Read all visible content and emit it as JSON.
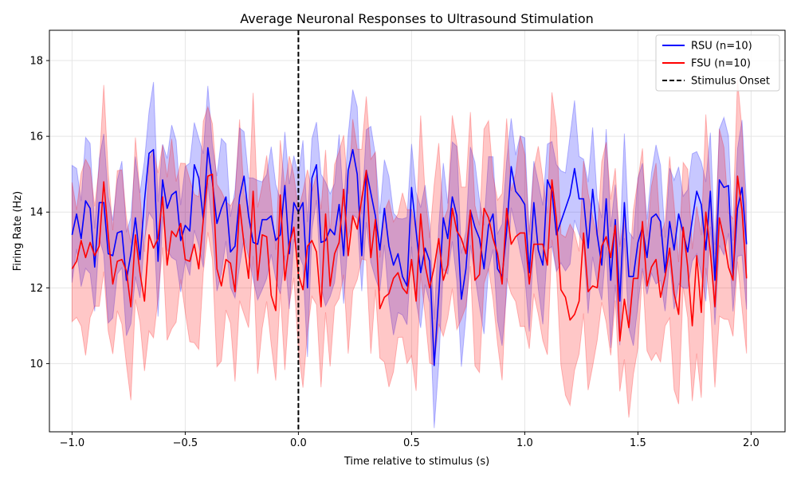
{
  "chart_data": {
    "type": "line",
    "title": "Average Neuronal Responses to Ultrasound Stimulation",
    "xlabel": "Time relative to stimulus (s)",
    "ylabel": "Firing Rate (Hz)",
    "xlim": [
      -1.1,
      2.15
    ],
    "ylim": [
      8.2,
      18.8
    ],
    "xticks": [
      -1.0,
      -0.5,
      0.0,
      0.5,
      1.0,
      1.5,
      2.0
    ],
    "xtick_labels": [
      "−1.0",
      "−0.5",
      "0.0",
      "0.5",
      "1.0",
      "1.5",
      "2.0"
    ],
    "yticks": [
      10,
      12,
      14,
      16,
      18
    ],
    "ytick_labels": [
      "10",
      "12",
      "14",
      "16",
      "18"
    ],
    "grid": true,
    "legend_position": "top-right",
    "x_start": -1.0,
    "x_step": 0.02,
    "series": [
      {
        "name": "RSU (n=10)",
        "color": "#0000ff",
        "band_color": "#0000ff",
        "band_opacity": 0.22,
        "band_halfwidth": 1.85,
        "values": [
          13.4,
          13.95,
          13.3,
          14.3,
          14.1,
          12.55,
          14.25,
          14.25,
          12.9,
          12.85,
          13.45,
          13.5,
          12.2,
          12.9,
          13.85,
          12.75,
          14.3,
          15.55,
          15.65,
          12.7,
          14.85,
          14.1,
          14.45,
          14.55,
          13.25,
          13.65,
          13.5,
          15.25,
          14.9,
          13.8,
          15.7,
          14.8,
          13.7,
          14.1,
          14.4,
          12.95,
          13.1,
          14.4,
          14.95,
          13.9,
          13.2,
          13.15,
          13.8,
          13.8,
          13.9,
          13.25,
          13.4,
          14.7,
          12.9,
          14.25,
          14.0,
          14.25,
          12.0,
          14.9,
          15.25,
          13.2,
          13.25,
          13.55,
          13.4,
          14.2,
          12.85,
          15.1,
          15.65,
          15.0,
          12.85,
          15.1,
          14.5,
          13.9,
          13.0,
          14.1,
          13.1,
          12.6,
          12.9,
          12.3,
          12.05,
          14.65,
          13.5,
          12.4,
          13.05,
          12.7,
          9.95,
          11.8,
          13.85,
          13.3,
          14.4,
          13.9,
          11.7,
          12.5,
          14.05,
          13.6,
          13.3,
          12.5,
          13.65,
          13.95,
          12.5,
          12.3,
          13.5,
          15.2,
          14.55,
          14.4,
          14.2,
          12.4,
          14.25,
          13.0,
          12.6,
          14.85,
          14.55,
          13.4,
          13.75,
          14.1,
          14.45,
          15.15,
          14.35,
          14.35,
          13.05,
          14.6,
          13.4,
          12.6,
          14.35,
          12.2,
          13.8,
          11.65,
          14.25,
          12.3,
          12.3,
          13.2,
          13.6,
          12.8,
          13.85,
          13.95,
          13.75,
          12.4,
          13.75,
          13.0,
          13.95,
          13.45,
          12.95,
          13.8,
          14.55,
          14.2,
          13.0,
          14.55,
          12.2,
          14.85,
          14.65,
          14.7,
          12.3,
          14.1,
          14.65,
          13.15
        ]
      },
      {
        "name": "FSU (n=10)",
        "color": "#ff0000",
        "band_color": "#ff0000",
        "band_opacity": 0.22,
        "band_halfwidth": 2.6,
        "values": [
          12.5,
          12.7,
          13.25,
          12.8,
          13.2,
          12.85,
          13.1,
          14.8,
          13.4,
          12.1,
          12.7,
          12.75,
          12.45,
          11.5,
          13.4,
          12.4,
          11.65,
          13.4,
          13.05,
          13.3,
          14.4,
          12.6,
          13.5,
          13.35,
          13.7,
          12.75,
          12.7,
          13.15,
          12.5,
          13.8,
          14.95,
          15.0,
          12.5,
          12.05,
          12.75,
          12.65,
          11.9,
          14.2,
          13.15,
          12.25,
          14.55,
          12.2,
          13.4,
          13.35,
          11.8,
          11.4,
          14.45,
          12.2,
          13.15,
          13.6,
          12.35,
          11.95,
          13.1,
          13.25,
          12.95,
          11.5,
          13.95,
          12.05,
          12.9,
          13.2,
          14.6,
          12.85,
          13.9,
          13.55,
          14.35,
          15.1,
          12.8,
          13.8,
          11.45,
          11.75,
          11.85,
          12.25,
          12.4,
          12.0,
          11.85,
          12.75,
          11.65,
          13.95,
          12.6,
          12.0,
          12.55,
          13.3,
          12.2,
          12.6,
          14.1,
          13.5,
          13.3,
          12.9,
          14.05,
          12.2,
          12.35,
          14.1,
          13.85,
          13.3,
          12.9,
          12.1,
          14.1,
          13.15,
          13.35,
          13.45,
          13.45,
          12.1,
          13.15,
          13.15,
          13.15,
          12.6,
          14.85,
          13.8,
          11.95,
          11.75,
          11.15,
          11.3,
          11.65,
          13.45,
          11.9,
          12.05,
          12.0,
          13.1,
          13.35,
          12.8,
          13.65,
          10.6,
          11.7,
          10.95,
          12.25,
          12.25,
          13.75,
          12.05,
          12.55,
          12.75,
          11.75,
          12.3,
          13.05,
          11.85,
          11.3,
          13.6,
          12.55,
          11.0,
          12.85,
          11.35,
          14.0,
          12.95,
          11.5,
          13.85,
          13.3,
          12.55,
          12.2,
          14.95,
          14.05,
          12.25
        ]
      },
      {
        "name": "Stimulus Onset",
        "type": "vline",
        "x": 0.0,
        "color": "#000000",
        "dash": "6,3"
      }
    ]
  }
}
